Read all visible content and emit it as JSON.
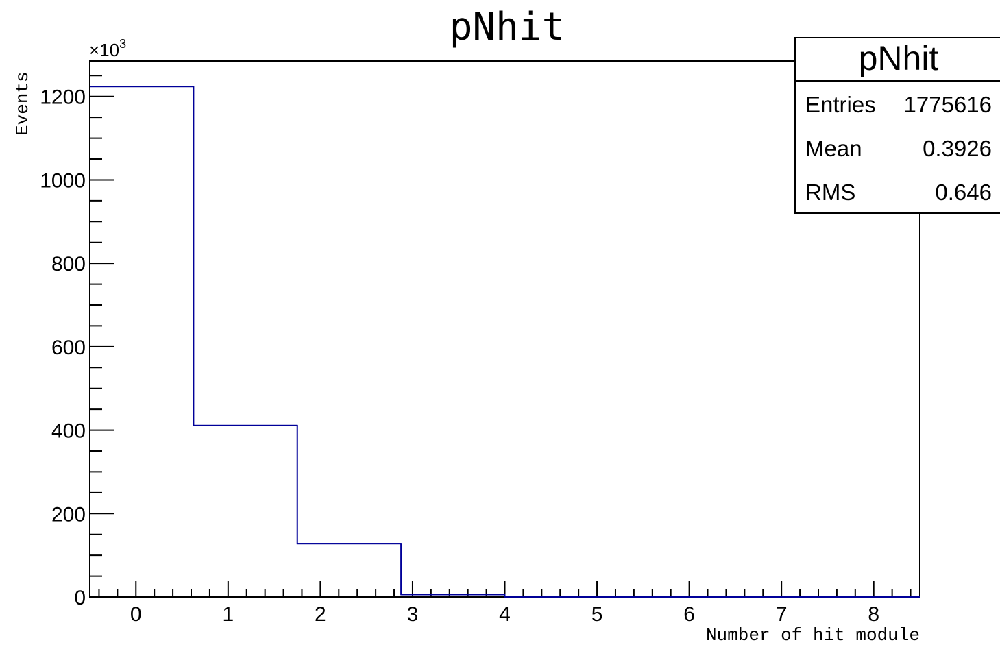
{
  "chart_data": {
    "type": "bar",
    "title": "pNhit",
    "xlabel": "Number of hit module",
    "ylabel": "Events",
    "y_multiplier_label": "×10",
    "y_multiplier_exponent": "3",
    "xlim": [
      -0.5,
      8.5
    ],
    "ylim": [
      0,
      1285
    ],
    "x_ticks": [
      "0",
      "1",
      "2",
      "3",
      "4",
      "5",
      "6",
      "7",
      "8"
    ],
    "y_ticks": [
      "0",
      "200",
      "400",
      "600",
      "800",
      "1000",
      "1200"
    ],
    "bins": [
      {
        "x_low": -0.5,
        "x_high": 0.625,
        "value": 1224
      },
      {
        "x_low": 0.625,
        "x_high": 1.75,
        "value": 411
      },
      {
        "x_low": 1.75,
        "x_high": 2.875,
        "value": 128
      },
      {
        "x_low": 2.875,
        "x_high": 4.0,
        "value": 6
      },
      {
        "x_low": 4.0,
        "x_high": 5.125,
        "value": 0.3
      },
      {
        "x_low": 5.125,
        "x_high": 6.25,
        "value": 0
      },
      {
        "x_low": 6.25,
        "x_high": 7.375,
        "value": 0
      },
      {
        "x_low": 7.375,
        "x_high": 8.5,
        "value": 0
      }
    ],
    "line_color": "#000099",
    "grid": false,
    "legend": "none",
    "stats_box": {
      "placement": "top-right",
      "title": "pNhit",
      "rows": [
        {
          "label": "Entries",
          "value": "1775616"
        },
        {
          "label": "Mean",
          "value": "0.3926"
        },
        {
          "label": "RMS",
          "value": "0.646"
        }
      ]
    }
  }
}
